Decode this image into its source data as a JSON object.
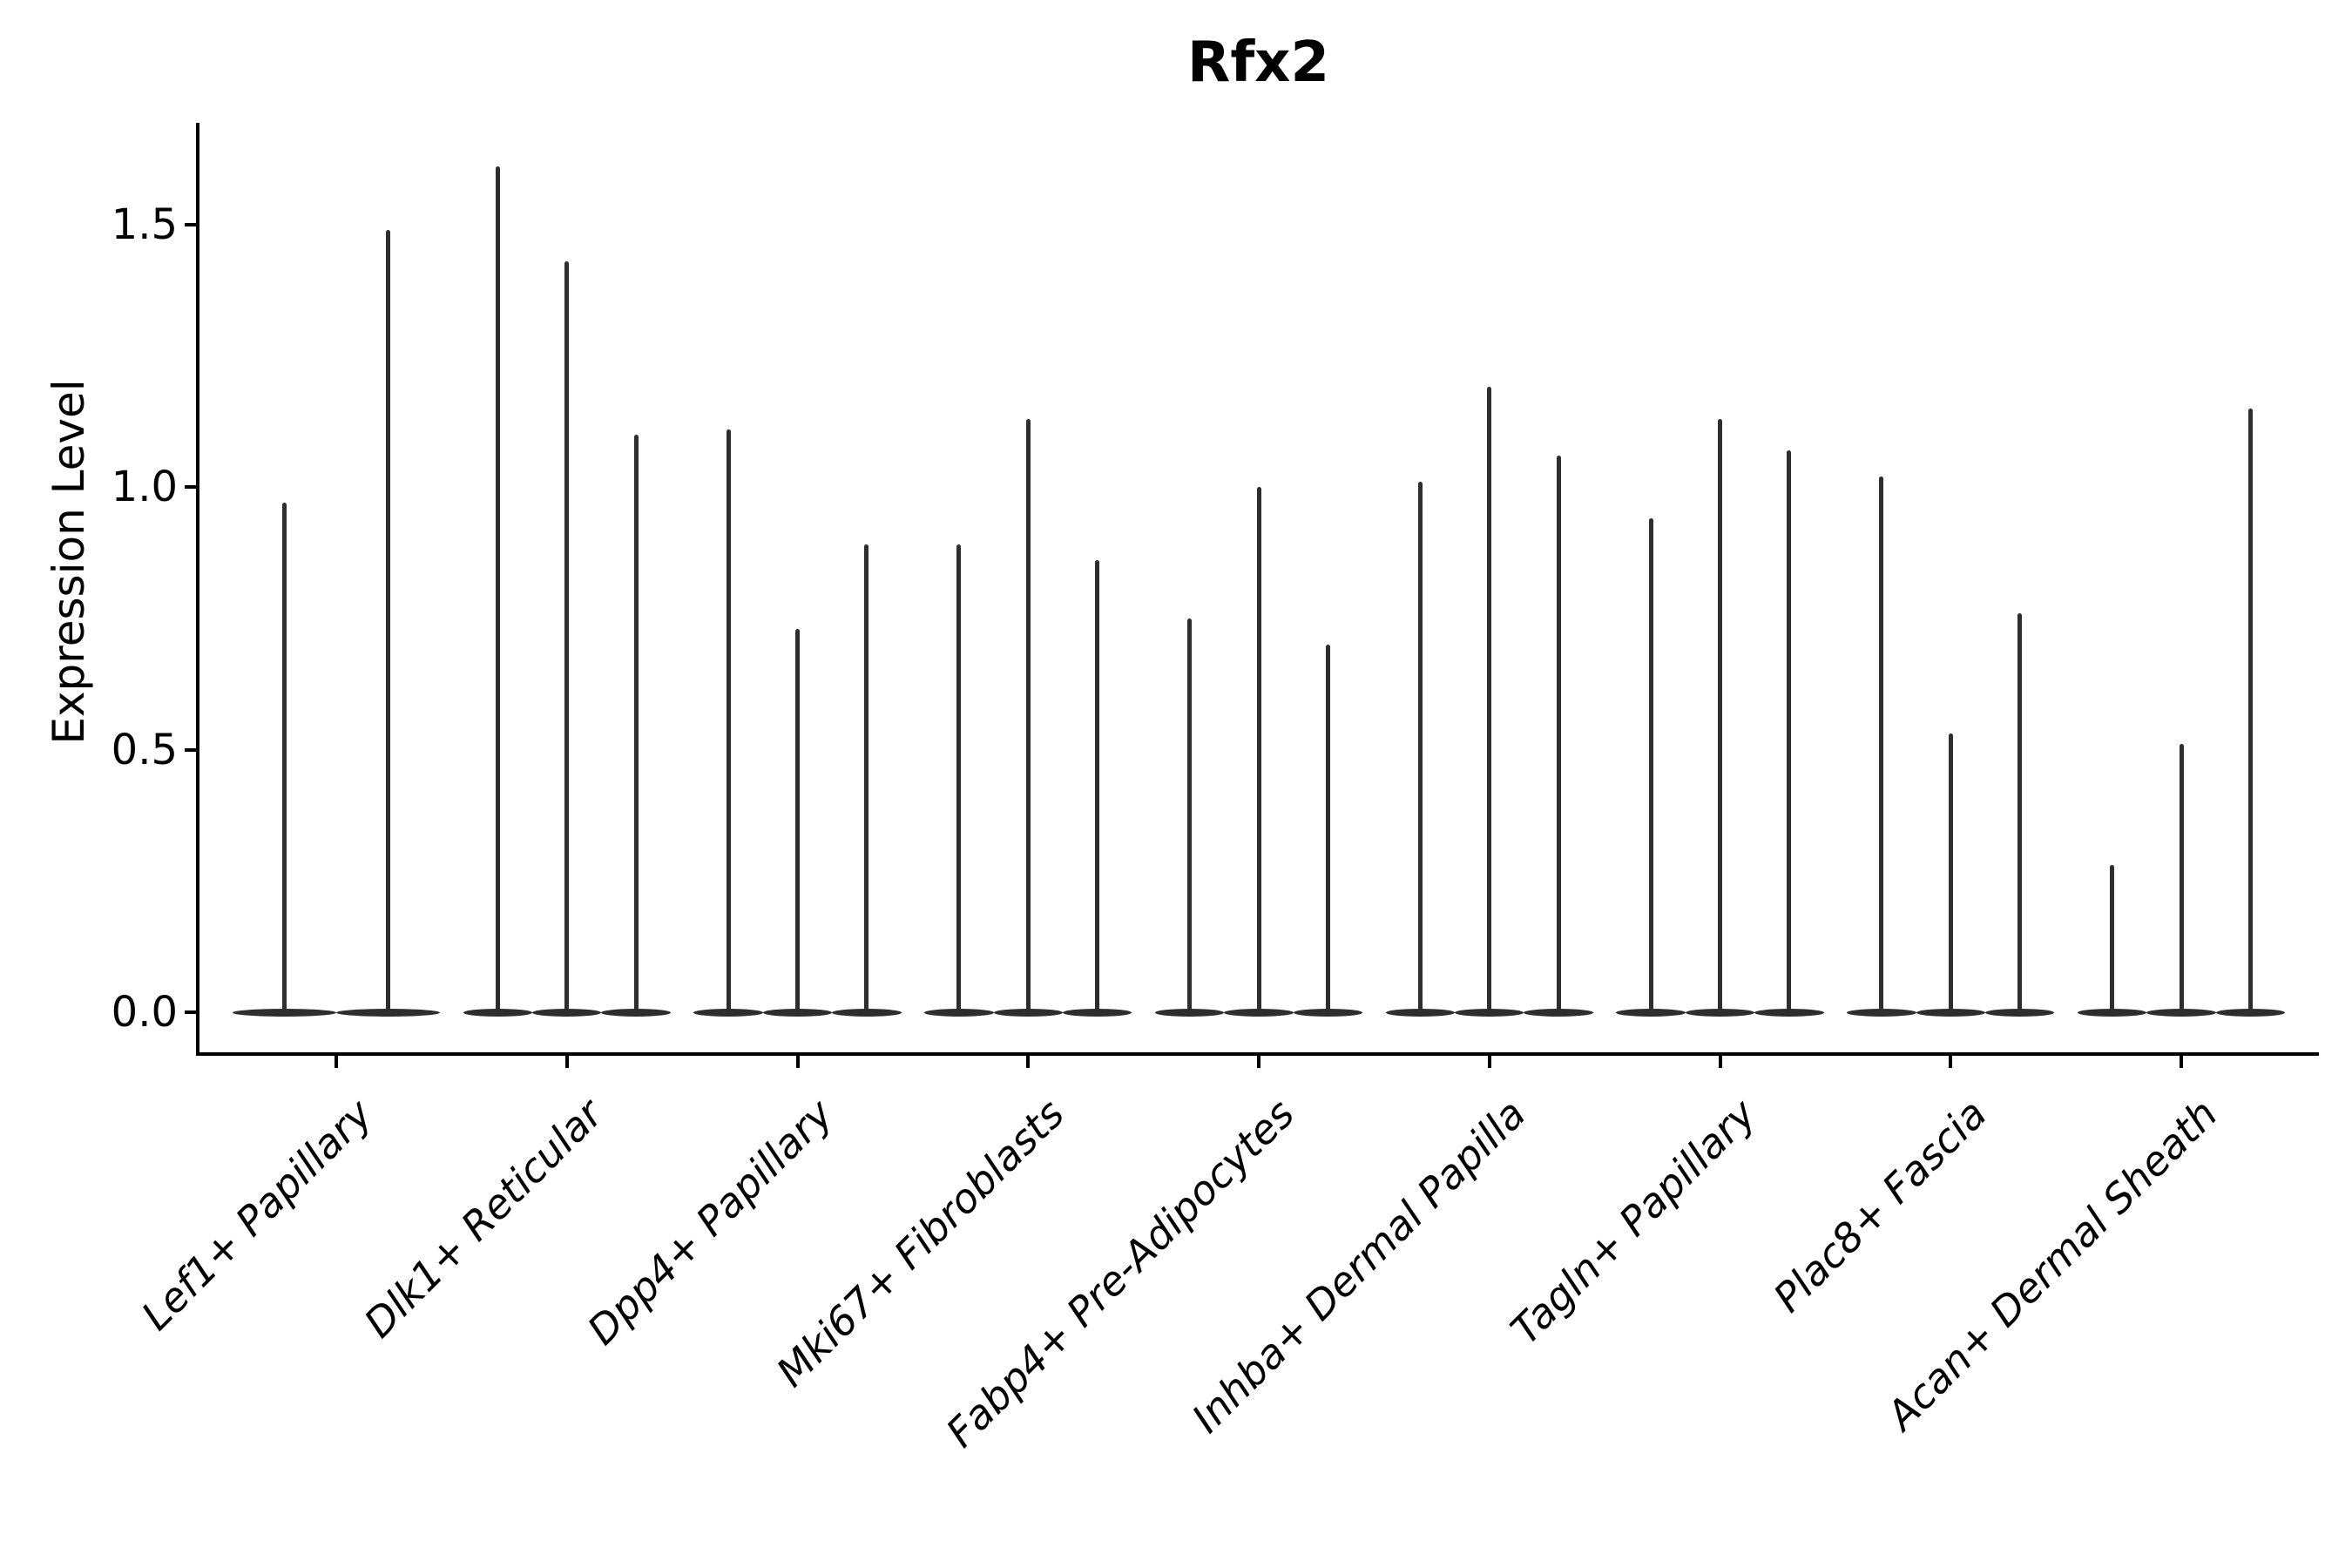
{
  "figure": {
    "title": "Rfx2",
    "ylabel": "Expression Level",
    "background_color": "#ffffff",
    "axis_color": "#000000",
    "text_color": "#000000",
    "violin_color": "#2e2e2e"
  },
  "chart_data": {
    "type": "violin",
    "title": "Rfx2",
    "xlabel": "",
    "ylabel": "Expression Level",
    "legend": "none",
    "grid": false,
    "ylim": [
      -0.08,
      1.69
    ],
    "yticks": [
      0.0,
      0.5,
      1.0,
      1.5
    ],
    "ytick_labels": [
      "0.0",
      "0.5",
      "1.0",
      "1.5"
    ],
    "categories": [
      "Lef1+ Papillary",
      "Dlk1+ Reticular",
      "Dpp4+ Papillary",
      "Mki67+ Fibroblasts",
      "Fabp4+ Pre-Adipocytes",
      "Inhba+ Dermal Papilla",
      "Tagln+ Papillary",
      "Plac8+ Fascia",
      "Acan+ Dermal Sheath"
    ],
    "description": "Violin plot of Rfx2 expression; each category holds 2-3 extremely narrow violins: a flat lens of density at 0 with a thin spike rising to the maximum expression value.",
    "groups": [
      {
        "label": "Lef1+ Papillary",
        "spike_maxima": [
          0.97,
          1.49
        ]
      },
      {
        "label": "Dlk1+ Reticular",
        "spike_maxima": [
          1.61,
          1.43,
          1.1
        ]
      },
      {
        "label": "Dpp4+ Papillary",
        "spike_maxima": [
          1.11,
          0.73,
          0.89
        ]
      },
      {
        "label": "Mki67+ Fibroblasts",
        "spike_maxima": [
          0.89,
          1.13,
          0.86
        ]
      },
      {
        "label": "Fabp4+ Pre-Adipocytes",
        "spike_maxima": [
          0.75,
          1.0,
          0.7
        ]
      },
      {
        "label": "Inhba+ Dermal Papilla",
        "spike_maxima": [
          1.01,
          1.19,
          1.06
        ]
      },
      {
        "label": "Tagln+ Papillary",
        "spike_maxima": [
          0.94,
          1.13,
          1.07
        ]
      },
      {
        "label": "Plac8+ Fascia",
        "spike_maxima": [
          1.02,
          0.53,
          0.76
        ]
      },
      {
        "label": "Acan+ Dermal Sheath",
        "spike_maxima": [
          0.28,
          0.51,
          1.15
        ]
      }
    ]
  }
}
